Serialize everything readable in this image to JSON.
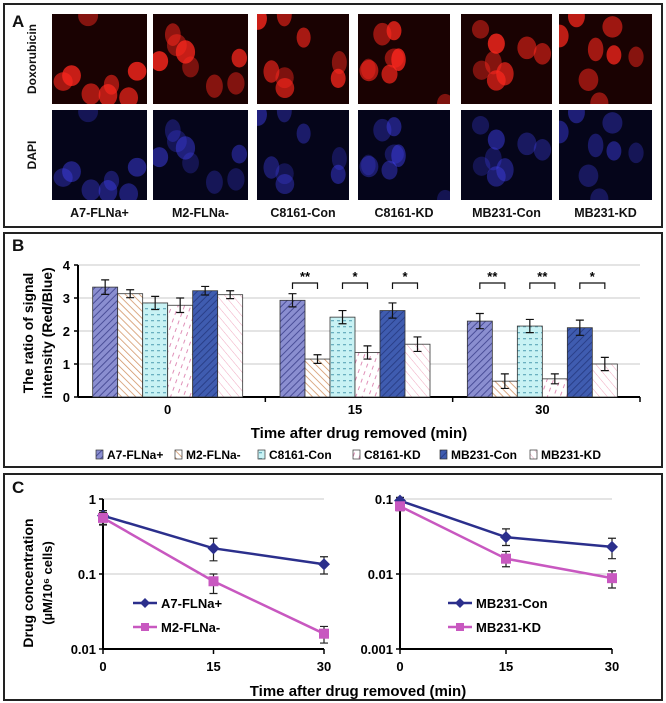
{
  "panels": {
    "a": "A",
    "b": "B",
    "c": "C"
  },
  "panel_a": {
    "rows": [
      "Doxorubicin",
      "DAPI"
    ],
    "columns": [
      "A7-FLNa+",
      "M2-FLNa-",
      "C8161-Con",
      "C8161-KD",
      "MB231-Con",
      "MB231-KD"
    ],
    "colors": {
      "doxorubicin": "#e01818",
      "dapi": "#2a2ad8"
    }
  },
  "chart_data": [
    {
      "type": "bar",
      "ylabel_line1": "The ratio of signal",
      "ylabel_line2": "intensity (Red/Blue)",
      "xlabel": "Time after drug removed (min)",
      "categories": [
        "0",
        "15",
        "30"
      ],
      "ylim": [
        0,
        4
      ],
      "yticks": [
        "0",
        "1",
        "2",
        "3",
        "4"
      ],
      "grid": true,
      "legend": "bottom",
      "series": [
        {
          "name": "A7-FLNa+",
          "values": [
            3.33,
            2.93,
            2.3
          ],
          "errors": [
            0.22,
            0.2,
            0.23
          ],
          "color": "#7b7fc8"
        },
        {
          "name": "M2-FLNa-",
          "values": [
            3.13,
            1.15,
            0.48
          ],
          "errors": [
            0.12,
            0.13,
            0.22
          ],
          "color": "#d9a878"
        },
        {
          "name": "C8161-Con",
          "values": [
            2.85,
            2.42,
            2.15
          ],
          "errors": [
            0.2,
            0.2,
            0.2
          ],
          "color": "#bdeef0"
        },
        {
          "name": "C8161-KD",
          "values": [
            2.78,
            1.35,
            0.55
          ],
          "errors": [
            0.22,
            0.2,
            0.15
          ],
          "color": "#e8a8c8"
        },
        {
          "name": "MB231-Con",
          "values": [
            3.22,
            2.62,
            2.1
          ],
          "errors": [
            0.13,
            0.23,
            0.23
          ],
          "color": "#3f5cb0"
        },
        {
          "name": "MB231-KD",
          "values": [
            3.1,
            1.6,
            1.0
          ],
          "errors": [
            0.12,
            0.22,
            0.2
          ],
          "color": "#f0b8c8"
        }
      ],
      "significance": [
        {
          "category": "15",
          "pair": [
            0,
            1
          ],
          "label": "**"
        },
        {
          "category": "15",
          "pair": [
            2,
            3
          ],
          "label": "*"
        },
        {
          "category": "15",
          "pair": [
            4,
            5
          ],
          "label": "*"
        },
        {
          "category": "30",
          "pair": [
            0,
            1
          ],
          "label": "**"
        },
        {
          "category": "30",
          "pair": [
            2,
            3
          ],
          "label": "**"
        },
        {
          "category": "30",
          "pair": [
            4,
            5
          ],
          "label": "*"
        }
      ]
    },
    {
      "type": "line",
      "ylabel_line1": "Drug concentration",
      "ylabel_line2": "(µM/10⁶ cells)",
      "xlabel": "Time after drug removed (min)",
      "x": [
        0,
        15,
        30
      ],
      "xticks": [
        "0",
        "15",
        "30"
      ],
      "yscale": "log",
      "ylim": [
        0.01,
        1
      ],
      "yticks": [
        "0.01",
        "0.1",
        "1"
      ],
      "grid": true,
      "legend": "bottom-left",
      "series": [
        {
          "name": "A7-FLNa+",
          "values": [
            0.6,
            0.22,
            0.135
          ],
          "errors_low": [
            0.46,
            0.15,
            0.1
          ],
          "errors_high": [
            0.7,
            0.3,
            0.17
          ],
          "color": "#2b2f8c",
          "marker": "diamond"
        },
        {
          "name": "M2-FLNa-",
          "values": [
            0.56,
            0.08,
            0.016
          ],
          "errors_low": [
            0.45,
            0.055,
            0.012
          ],
          "errors_high": [
            0.66,
            0.1,
            0.02
          ],
          "color": "#c858c0",
          "marker": "square"
        }
      ]
    },
    {
      "type": "line",
      "x": [
        0,
        15,
        30
      ],
      "xticks": [
        "0",
        "15",
        "30"
      ],
      "yscale": "log",
      "ylim": [
        0.001,
        0.1
      ],
      "yticks": [
        "0.001",
        "0.01",
        "0.1"
      ],
      "grid": true,
      "legend": "bottom-left",
      "series": [
        {
          "name": "MB231-Con",
          "values": [
            0.095,
            0.031,
            0.023
          ],
          "errors_low": [
            0.085,
            0.024,
            0.016
          ],
          "errors_high": [
            0.105,
            0.04,
            0.03
          ],
          "color": "#2b2f8c",
          "marker": "diamond"
        },
        {
          "name": "MB231-KD",
          "values": [
            0.08,
            0.016,
            0.0088
          ],
          "errors_low": [
            0.07,
            0.0125,
            0.0065
          ],
          "errors_high": [
            0.09,
            0.02,
            0.011
          ],
          "color": "#c858c0",
          "marker": "square"
        }
      ]
    }
  ]
}
